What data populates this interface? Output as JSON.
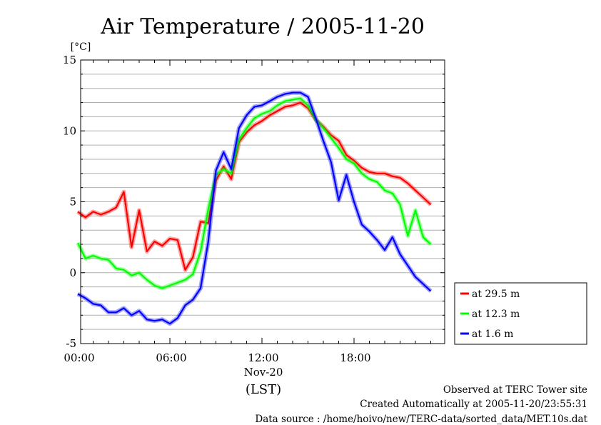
{
  "chart_data": {
    "type": "line",
    "title": "Air Temperature / 2005-11-20",
    "yunit": "[°C]",
    "ylim": [
      -5,
      15
    ],
    "yticks": [
      15,
      10,
      5,
      0,
      -5
    ],
    "xlim": [
      0,
      23
    ],
    "xticks": [
      {
        "value": 0,
        "label": "00:00"
      },
      {
        "value": 6,
        "label": "06:00"
      },
      {
        "value": 12,
        "label": "12:00"
      },
      {
        "value": 18,
        "label": "18:00"
      }
    ],
    "date_label": "Nov-20",
    "xlabel": "(LST)",
    "grid": true,
    "legend_position": "right",
    "x": [
      0,
      0.5,
      1,
      1.5,
      2,
      2.5,
      3,
      3.5,
      4,
      4.5,
      5,
      5.5,
      6,
      6.5,
      7,
      7.5,
      8,
      8.5,
      9,
      9.5,
      10,
      10.5,
      11,
      11.5,
      12,
      12.5,
      13,
      13.5,
      14,
      14.5,
      15,
      15.5,
      16,
      16.5,
      17,
      17.5,
      18,
      18.5,
      19,
      19.5,
      20,
      20.5,
      21,
      21.5,
      22,
      22.5,
      23
    ],
    "series": [
      {
        "name": "at 29.5 m",
        "color": "#ff0000",
        "values": [
          4.3,
          3.9,
          4.3,
          4.1,
          4.3,
          4.6,
          5.7,
          1.8,
          4.4,
          1.5,
          2.2,
          1.9,
          2.4,
          2.3,
          0.2,
          1.1,
          3.6,
          3.5,
          6.5,
          7.5,
          6.6,
          9.2,
          9.9,
          10.4,
          10.7,
          11.1,
          11.4,
          11.7,
          11.8,
          12.0,
          11.6,
          10.8,
          10.3,
          9.7,
          9.3,
          8.3,
          7.9,
          7.4,
          7.1,
          7.0,
          7.0,
          6.8,
          6.7,
          6.3,
          5.8,
          5.3,
          4.8
        ]
      },
      {
        "name": "at 12.3 m",
        "color": "#00ff00",
        "values": [
          2.1,
          1.0,
          1.2,
          1.0,
          0.9,
          0.3,
          0.2,
          -0.2,
          0.0,
          -0.5,
          -0.9,
          -1.1,
          -0.9,
          -0.7,
          -0.5,
          -0.1,
          1.5,
          4.5,
          6.9,
          7.3,
          7.0,
          9.4,
          10.2,
          10.9,
          11.2,
          11.4,
          11.8,
          12.1,
          12.2,
          12.3,
          11.8,
          10.8,
          10.2,
          9.5,
          8.8,
          8.0,
          7.7,
          7.0,
          6.6,
          6.4,
          5.8,
          5.6,
          4.8,
          2.6,
          4.4,
          2.5,
          2.0
        ]
      },
      {
        "name": "at 1.6 m",
        "color": "#0000ff",
        "values": [
          -1.5,
          -1.8,
          -2.2,
          -2.3,
          -2.8,
          -2.8,
          -2.5,
          -3.0,
          -2.7,
          -3.3,
          -3.4,
          -3.3,
          -3.6,
          -3.2,
          -2.3,
          -1.9,
          -1.1,
          2.2,
          7.2,
          8.5,
          7.3,
          10.2,
          11.1,
          11.7,
          11.8,
          12.1,
          12.4,
          12.6,
          12.7,
          12.7,
          12.4,
          10.9,
          9.3,
          7.8,
          5.1,
          6.9,
          5.0,
          3.4,
          2.9,
          2.3,
          1.6,
          2.5,
          1.3,
          0.5,
          -0.3,
          -0.8,
          -1.3
        ]
      }
    ]
  },
  "footer": {
    "line1": "Observed at TERC Tower site",
    "line2": "Created Automatically at 2005-11-20/23:55:31",
    "line3": "Data source : /home/hoivo/new/TERC-data/sorted_data/MET.10s.dat"
  }
}
